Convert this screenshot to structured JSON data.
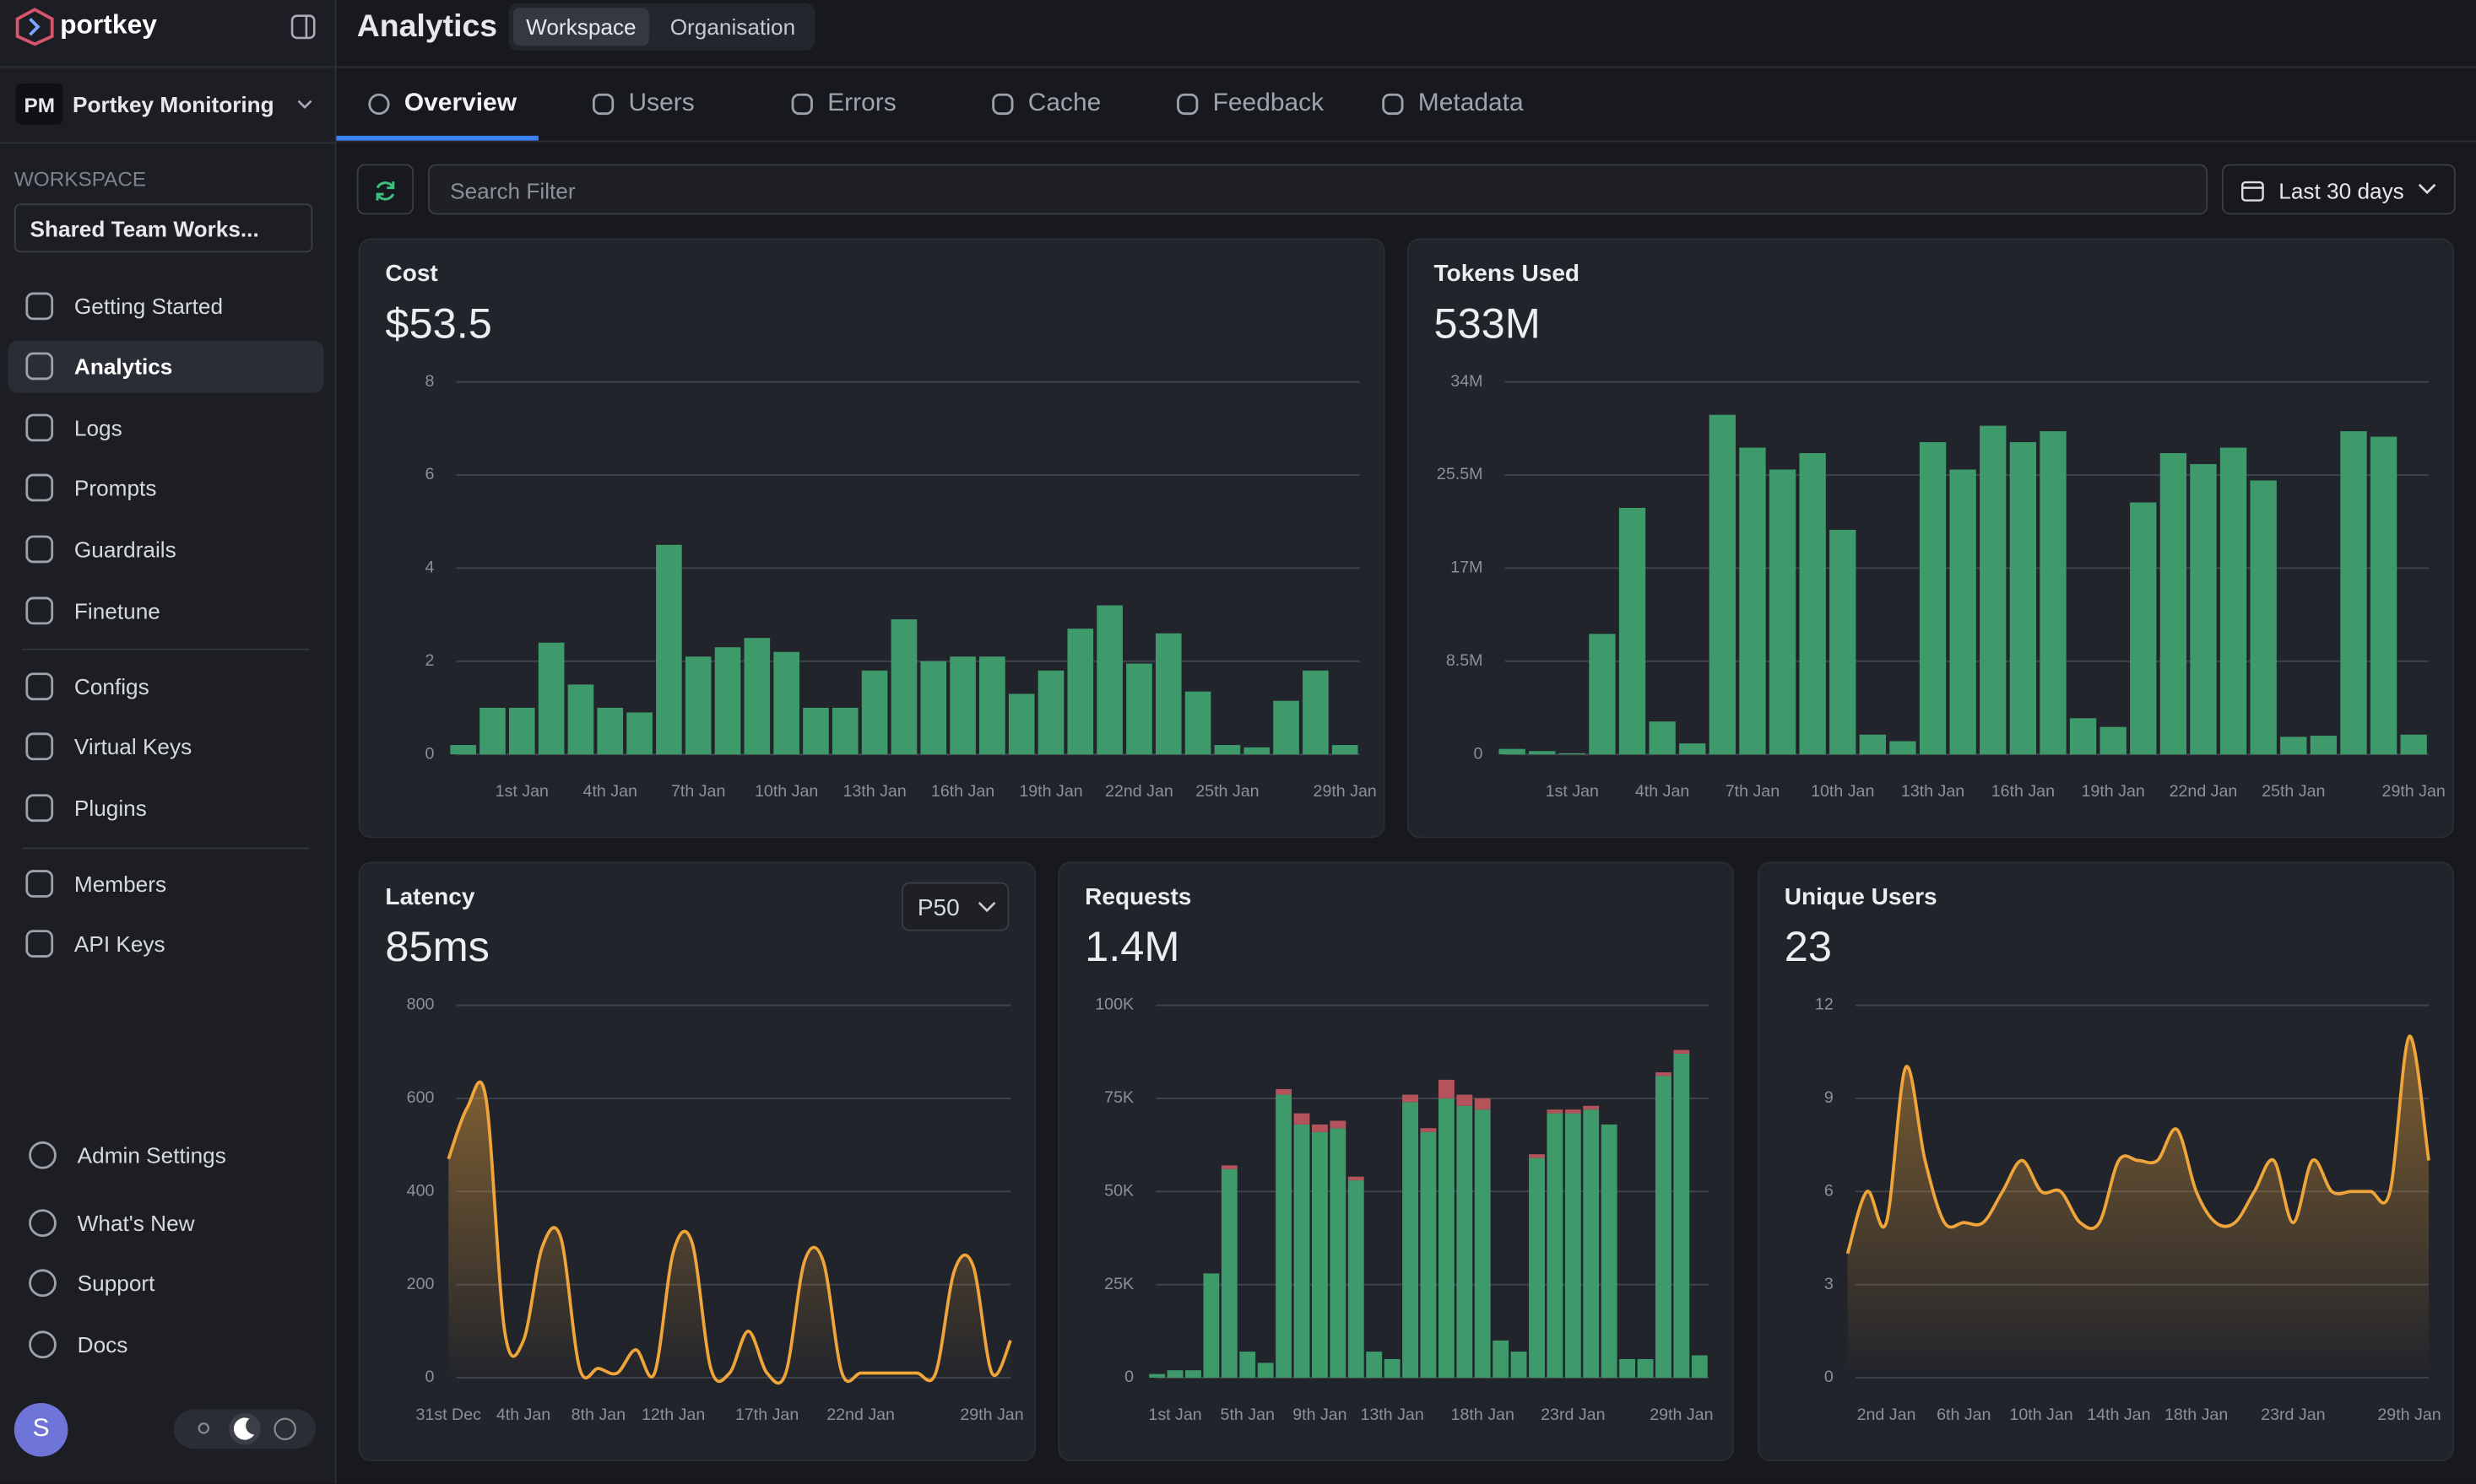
{
  "sidebar": {
    "brand": "portkey",
    "org": {
      "initials": "PM",
      "name": "Portkey Monitoring"
    },
    "workspace_label": "WORKSPACE",
    "workspace": "Shared Team Works...",
    "nav": [
      [
        "Getting Started",
        "Analytics",
        "Logs",
        "Prompts",
        "Guardrails",
        "Finetune"
      ],
      [
        "Configs",
        "Virtual Keys",
        "Plugins"
      ],
      [
        "Members",
        "API Keys"
      ]
    ],
    "footer": [
      "Admin Settings",
      "What's New",
      "Support",
      "Docs"
    ],
    "avatar": "S"
  },
  "header": {
    "title": "Analytics",
    "scopes": [
      "Workspace",
      "Organisation"
    ]
  },
  "tabs": [
    "Overview",
    "Users",
    "Errors",
    "Cache",
    "Feedback",
    "Metadata"
  ],
  "toolbar": {
    "search_placeholder": "Search Filter",
    "range": "Last 30 days"
  },
  "chart_data": [
    {
      "type": "bar",
      "title": "Cost",
      "summary": "$53.5",
      "categories": [
        null,
        null,
        "1st Jan",
        null,
        null,
        "4th Jan",
        null,
        null,
        "7th Jan",
        null,
        null,
        "10th Jan",
        null,
        null,
        "13th Jan",
        null,
        null,
        "16th Jan",
        null,
        null,
        "19th Jan",
        null,
        null,
        "22nd Jan",
        null,
        null,
        "25th Jan",
        null,
        null,
        null,
        "29th Jan"
      ],
      "values": [
        0.2,
        1,
        1,
        2.4,
        1.5,
        1,
        0.9,
        4.5,
        2.1,
        2.3,
        2.5,
        2.2,
        1,
        1,
        1.8,
        2.9,
        2,
        2.1,
        2.1,
        1.3,
        1.8,
        2.7,
        3.2,
        1.95,
        2.6,
        1.35,
        0.2,
        0.15,
        1.15,
        1.8,
        0.2
      ],
      "color": "#3f9a6b",
      "ylim": [
        0,
        8
      ],
      "yticks": [
        0,
        2,
        4,
        6,
        8
      ],
      "grid": true
    },
    {
      "type": "bar",
      "title": "Tokens Used",
      "summary": "533M",
      "categories": [
        null,
        null,
        "1st Jan",
        null,
        null,
        "4th Jan",
        null,
        null,
        "7th Jan",
        null,
        null,
        "10th Jan",
        null,
        null,
        "13th Jan",
        null,
        null,
        "16th Jan",
        null,
        null,
        "19th Jan",
        null,
        null,
        "22nd Jan",
        null,
        null,
        "25th Jan",
        null,
        null,
        null,
        "29th Jan"
      ],
      "values": [
        0.5,
        0.3,
        0.1,
        11,
        22.5,
        3,
        1,
        31,
        28,
        26,
        27.5,
        20.5,
        1.8,
        1.2,
        28.5,
        26,
        30,
        28.5,
        29.5,
        3.3,
        2.5,
        23,
        27.5,
        26.5,
        28,
        25,
        1.6,
        1.7,
        29.5,
        29,
        1.8
      ],
      "color": "#3f9a6b",
      "ylim": [
        0,
        34
      ],
      "yticks": [
        0,
        {
          "value": 8.5,
          "label": "8.5M"
        },
        {
          "value": 17,
          "label": "17M"
        },
        {
          "value": 25.5,
          "label": "25.5M"
        },
        {
          "value": 34,
          "label": "34M"
        }
      ],
      "grid": true
    },
    {
      "type": "area",
      "title": "Latency",
      "summary": "85ms",
      "control": "P50",
      "categories": [
        "31st Dec",
        null,
        null,
        null,
        "4th Jan",
        null,
        null,
        null,
        "8th Jan",
        null,
        null,
        null,
        "12th Jan",
        null,
        null,
        null,
        null,
        "17th Jan",
        null,
        null,
        null,
        null,
        "22nd Jan",
        null,
        null,
        null,
        null,
        null,
        null,
        "29th Jan",
        null
      ],
      "values": [
        470,
        580,
        600,
        100,
        80,
        280,
        300,
        20,
        20,
        10,
        60,
        10,
        270,
        290,
        20,
        10,
        100,
        10,
        10,
        250,
        250,
        10,
        10,
        10,
        10,
        10,
        10,
        230,
        240,
        10,
        80
      ],
      "color": "#f0a53a",
      "ylim": [
        0,
        800
      ],
      "yticks": [
        0,
        200,
        400,
        600,
        800
      ],
      "grid": true
    },
    {
      "type": "stacked_bar",
      "title": "Requests",
      "summary": "1.4M",
      "categories": [
        null,
        "1st Jan",
        null,
        null,
        null,
        "5th Jan",
        null,
        null,
        null,
        "9th Jan",
        null,
        null,
        null,
        "13th Jan",
        null,
        null,
        null,
        null,
        "18th Jan",
        null,
        null,
        null,
        null,
        "23rd Jan",
        null,
        null,
        null,
        null,
        null,
        "29th Jan",
        null
      ],
      "series": [
        {
          "color": "#3f9a6b",
          "values": [
            1,
            2,
            2,
            28,
            56,
            7,
            4,
            76,
            68,
            66,
            67,
            53,
            7,
            5,
            74,
            66,
            75,
            73,
            72,
            10,
            7,
            59,
            71,
            71,
            72,
            68,
            5,
            5,
            81,
            87,
            6
          ]
        },
        {
          "color": "#b4535c",
          "values": [
            0,
            0,
            0,
            0,
            1,
            0,
            0,
            1.5,
            3,
            2,
            2,
            1,
            0,
            0,
            2,
            1,
            5,
            3,
            3,
            0,
            0,
            1,
            1,
            1,
            1,
            0,
            0,
            0,
            1,
            1,
            0
          ]
        }
      ],
      "ylim": [
        0,
        100
      ],
      "yticks": [
        0,
        {
          "value": 25,
          "label": "25K"
        },
        {
          "value": 50,
          "label": "50K"
        },
        {
          "value": 75,
          "label": "75K"
        },
        {
          "value": 100,
          "label": "100K"
        }
      ],
      "grid": true
    },
    {
      "type": "area",
      "title": "Unique Users",
      "summary": "23",
      "categories": [
        null,
        null,
        "2nd Jan",
        null,
        null,
        null,
        "6th Jan",
        null,
        null,
        null,
        "10th Jan",
        null,
        null,
        null,
        "14th Jan",
        null,
        null,
        null,
        "18th Jan",
        null,
        null,
        null,
        null,
        "23rd Jan",
        null,
        null,
        null,
        null,
        null,
        "29th Jan",
        null
      ],
      "values": [
        4,
        6,
        5,
        10,
        7,
        5,
        5,
        5,
        6,
        7,
        6,
        6,
        5,
        5,
        7,
        7,
        7,
        8,
        6,
        5,
        5,
        6,
        7,
        5,
        7,
        6,
        6,
        6,
        6,
        11,
        7
      ],
      "color": "#f0a53a",
      "ylim": [
        0,
        12
      ],
      "yticks": [
        0,
        3,
        6,
        9,
        12
      ],
      "grid": true
    }
  ]
}
